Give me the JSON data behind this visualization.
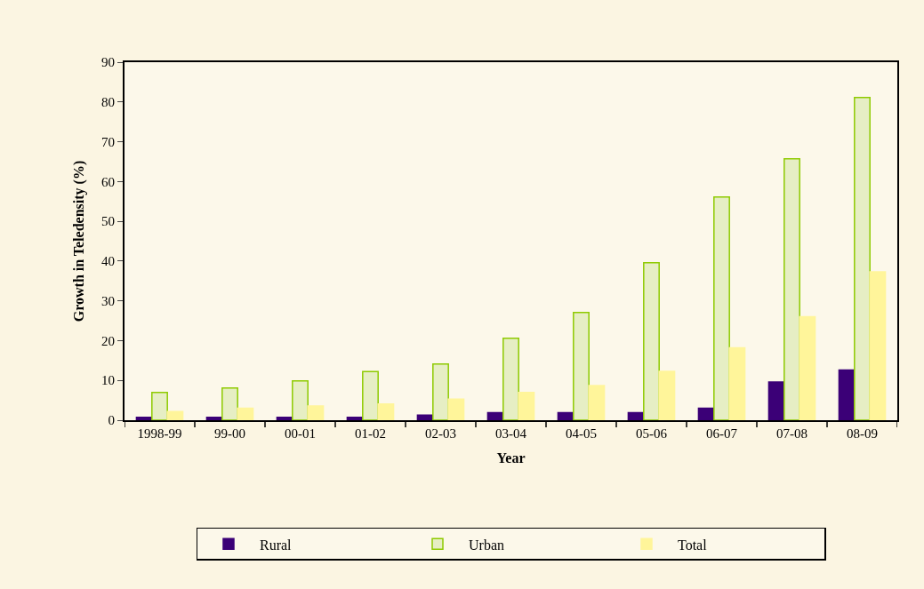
{
  "chart_data": {
    "type": "bar",
    "xlabel": "Year",
    "ylabel": "Growth in Teledensity (%)",
    "categories": [
      "1998-99",
      "99-00",
      "00-01",
      "01-02",
      "02-03",
      "03-04",
      "04-05",
      "05-06",
      "06-07",
      "07-08",
      "08-09"
    ],
    "series": [
      {
        "name": "Rural",
        "color": "#3b0077",
        "values": [
          0.7,
          0.7,
          0.7,
          0.7,
          1.3,
          1.9,
          1.9,
          1.9,
          3.0,
          9.6,
          12.6
        ]
      },
      {
        "name": "Urban",
        "color": "#e6eec4",
        "values": [
          7.0,
          8.1,
          9.9,
          12.2,
          14.1,
          20.6,
          27.1,
          39.6,
          56.1,
          65.7,
          81.1
        ]
      },
      {
        "name": "Total",
        "color": "#fff59a",
        "values": [
          2.2,
          3.0,
          3.6,
          4.1,
          5.3,
          7.0,
          8.7,
          12.3,
          18.2,
          26.0,
          37.3
        ]
      }
    ],
    "ylim": [
      0,
      90
    ],
    "yticks": [
      0,
      10,
      20,
      30,
      40,
      50,
      60,
      70,
      80,
      90
    ],
    "grid": false,
    "legend": "bottom"
  }
}
